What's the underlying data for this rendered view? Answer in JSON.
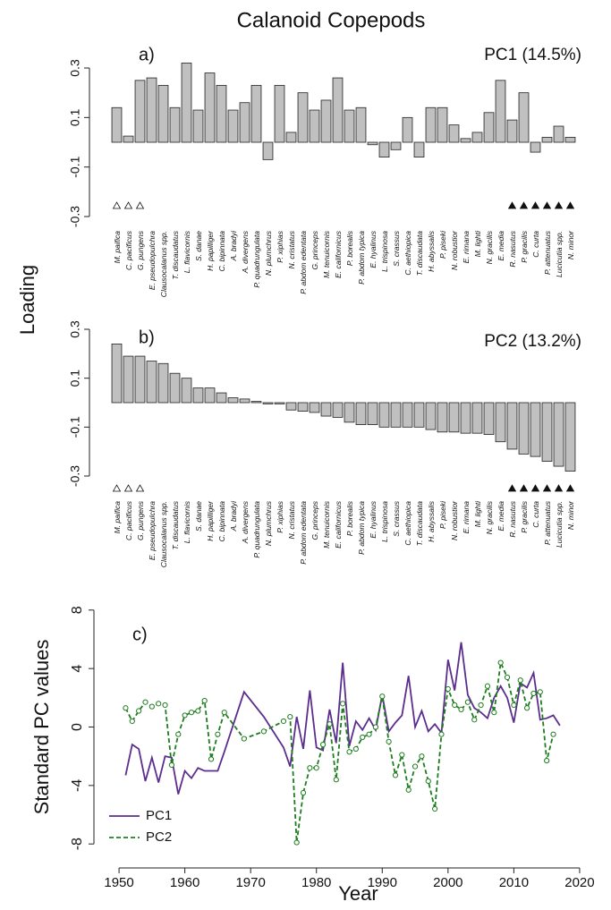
{
  "title": "Calanoid Copepods",
  "y_label": "Loading",
  "chart_data": [
    {
      "type": "bar",
      "panel_label": "a)",
      "annotation": "PC1 (14.5%)",
      "color": "#c0c0c0",
      "ylim": [
        -0.3,
        0.3
      ],
      "yticks": [
        0.3,
        0.1,
        -0.1,
        -0.3
      ],
      "categories": [
        "M. paifica",
        "C. pacificus",
        "G. pungens",
        "E. pseudopulchra",
        "Clausocalanus spp.",
        "T. discaudatus",
        "L. flavicornis",
        "S. danae",
        "H. papilliger",
        "C. bipinnata",
        "A. bradyi",
        "A. divergens",
        "P. quadrungulata",
        "N. plumchrus",
        "P. xiphias",
        "N. cristatus",
        "P. abdom edentata",
        "G. princeps",
        "M. tenuicornis",
        "E. californicus",
        "P. borealis",
        "P. abdom typica",
        "E. hyalinus",
        "L. trispinosa",
        "S. crassus",
        "C. aethiopica",
        "T. discaudata",
        "H. abyssalis",
        "P. piseki",
        "N. robustior",
        "E. rimana",
        "M. lighti",
        "N. gracilis",
        "E. media",
        "R. nasutus",
        "P. gracilis",
        "C. curta",
        "P. attenuatus",
        "Lucicutia spp.",
        "N. minor"
      ],
      "values": [
        0.14,
        0.025,
        0.25,
        0.26,
        0.23,
        0.14,
        0.32,
        0.13,
        0.28,
        0.23,
        0.13,
        0.16,
        0.23,
        -0.07,
        0.23,
        0.04,
        0.2,
        0.13,
        0.17,
        0.26,
        0.13,
        0.14,
        -0.01,
        -0.06,
        -0.03,
        0.1,
        -0.06,
        0.14,
        0.14,
        0.07,
        0.015,
        0.04,
        0.12,
        0.25,
        0.09,
        0.2,
        -0.04,
        0.02,
        0.065,
        0.02
      ]
    },
    {
      "type": "bar",
      "panel_label": "b)",
      "annotation": "PC2 (13.2%)",
      "color": "#c0c0c0",
      "ylim": [
        -0.3,
        0.3
      ],
      "yticks": [
        0.3,
        0.1,
        -0.1,
        -0.3
      ],
      "categories": [
        "M. paifica",
        "C. pacificus",
        "G. pungens",
        "E. pseudopulchra",
        "Clausocalanus spp.",
        "T. discaudatus",
        "L. flavicornis",
        "S. danae",
        "H. papilliger",
        "C. bipinnata",
        "A. bradyi",
        "A. divergens",
        "P. quadrungulata",
        "N. plumchrus",
        "P. xiphias",
        "N. cristatus",
        "P. abdom edentata",
        "G. princeps",
        "M. tenuicornis",
        "E. californicus",
        "P. borealis",
        "P. abdom typica",
        "E. hyalinus",
        "L. trispinosa",
        "S. crassus",
        "C. aethiopica",
        "T. discaudata",
        "H. abyssalis",
        "P. piseki",
        "N. robustior",
        "E. rimana",
        "M. lighti",
        "N. gracilis",
        "E. media",
        "R. nasutus",
        "P. gracilis",
        "C. curta",
        "P. attenuatus",
        "Lucicutia spp.",
        "N. minor"
      ],
      "values": [
        0.24,
        0.19,
        0.19,
        0.17,
        0.16,
        0.12,
        0.1,
        0.06,
        0.06,
        0.04,
        0.02,
        0.015,
        0.005,
        -0.005,
        -0.005,
        -0.03,
        -0.035,
        -0.04,
        -0.055,
        -0.06,
        -0.08,
        -0.09,
        -0.09,
        -0.1,
        -0.1,
        -0.1,
        -0.1,
        -0.11,
        -0.12,
        -0.12,
        -0.125,
        -0.125,
        -0.13,
        -0.16,
        -0.19,
        -0.21,
        -0.22,
        -0.24,
        -0.26,
        -0.28
      ]
    },
    {
      "type": "line",
      "panel_label": "c)",
      "x_label": "Year",
      "y_label": "Standard PC values",
      "xlim": [
        1947,
        2023
      ],
      "xticks": [
        1950,
        1960,
        1970,
        1980,
        1990,
        2000,
        2010,
        2020
      ],
      "ylim": [
        -8.6,
        8.6
      ],
      "yticks": [
        -8,
        -4,
        0,
        4,
        8
      ],
      "x": [
        1951,
        1952,
        1953,
        1954,
        1955,
        1956,
        1957,
        1958,
        1959,
        1960,
        1961,
        1962,
        1963,
        1964,
        1965,
        1966,
        1969,
        1972,
        1975,
        1976,
        1977,
        1978,
        1979,
        1980,
        1981,
        1982,
        1983,
        1984,
        1985,
        1986,
        1987,
        1988,
        1989,
        1990,
        1991,
        1992,
        1993,
        1994,
        1995,
        1996,
        1997,
        1998,
        1999,
        2000,
        2001,
        2002,
        2003,
        2004,
        2005,
        2006,
        2007,
        2008,
        2009,
        2010,
        2011,
        2012,
        2013,
        2014,
        2015,
        2016,
        2017
      ],
      "series": [
        {
          "name": "PC1",
          "color": "#5b2d8e",
          "dashed": false,
          "markers": false,
          "values": [
            -3.3,
            -1.2,
            -1.5,
            -3.7,
            -2.1,
            -3.8,
            -2.0,
            -2.1,
            -4.6,
            -3.0,
            -3.5,
            -2.8,
            -3.0,
            -3.0,
            -3.0,
            -1.7,
            2.4,
            0.7,
            -1.4,
            -2.7,
            0.7,
            -1.5,
            2.5,
            -1.4,
            -1.6,
            1.2,
            -1.1,
            4.4,
            -1.3,
            0.4,
            -0.2,
            0.6,
            -0.2,
            2.2,
            -0.3,
            0.3,
            0.8,
            3.5,
            0.0,
            1.1,
            -0.3,
            0.2,
            -0.4,
            4.6,
            2.5,
            5.8,
            2.2,
            1.3,
            1.0,
            0.6,
            2.0,
            2.8,
            2.0,
            0.3,
            3.0,
            2.7,
            3.7,
            0.5,
            0.6,
            0.8,
            0.1
          ]
        },
        {
          "name": "PC2",
          "color": "#1e7d1e",
          "dashed": true,
          "markers": true,
          "values": [
            1.3,
            0.4,
            1.1,
            1.7,
            1.4,
            1.6,
            1.5,
            -2.6,
            -0.5,
            0.8,
            1.0,
            1.1,
            1.8,
            -2.2,
            -0.5,
            1.0,
            -0.8,
            -0.3,
            0.4,
            0.7,
            -7.9,
            -4.5,
            -2.8,
            -2.8,
            -1.2,
            0.2,
            -3.6,
            1.6,
            -1.7,
            -1.5,
            -0.7,
            -0.5,
            0.0,
            2.1,
            -1.0,
            -3.3,
            -1.9,
            -4.3,
            -2.7,
            -2.0,
            -3.7,
            -5.6,
            -0.5,
            2.6,
            1.5,
            1.2,
            1.7,
            0.5,
            1.5,
            2.8,
            1.0,
            4.4,
            3.4,
            1.5,
            3.2,
            1.3,
            2.3,
            2.4,
            -2.3,
            -0.5,
            null
          ]
        }
      ]
    }
  ]
}
